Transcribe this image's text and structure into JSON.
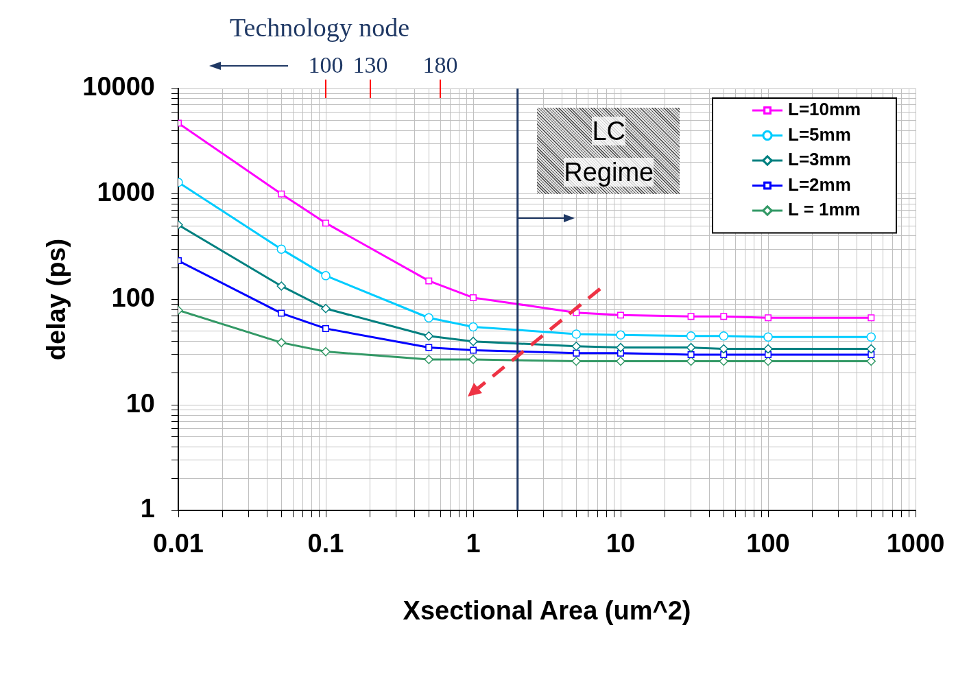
{
  "chart_data": {
    "type": "line",
    "title": "Technology node",
    "xlabel": "Xsectional Area (um^2)",
    "ylabel": "delay (ps)",
    "x": [
      0.01,
      0.05,
      0.1,
      0.5,
      1,
      5,
      10,
      30,
      50,
      100,
      500
    ],
    "series": [
      {
        "name": "L=10mm",
        "color": "#ff00ff",
        "marker": "square",
        "values": [
          4700,
          1000,
          530,
          150,
          104,
          75,
          71,
          69,
          69,
          67,
          67
        ]
      },
      {
        "name": "L=5mm",
        "color": "#00ccff",
        "marker": "circle",
        "values": [
          1290,
          300,
          168,
          67,
          55,
          47,
          46,
          45,
          45,
          44,
          44
        ]
      },
      {
        "name": "L=3mm",
        "color": "#008080",
        "marker": "diamond",
        "values": [
          510,
          134,
          82,
          45,
          40,
          36,
          35,
          35,
          34,
          34,
          34
        ]
      },
      {
        "name": "L=2mm",
        "color": "#0000ff",
        "marker": "square",
        "values": [
          233,
          74,
          53,
          35,
          33,
          31,
          31,
          30,
          30,
          30,
          30
        ]
      },
      {
        "name": "L = 1mm",
        "color": "#339966",
        "marker": "diamond",
        "values": [
          79,
          39,
          32,
          27,
          27,
          26,
          26,
          26,
          26,
          26,
          26
        ]
      }
    ],
    "log": "xy",
    "xlim": [
      0.01,
      1000
    ],
    "xticks": [
      0.01,
      0.1,
      1,
      10,
      100,
      1000
    ],
    "ylim": [
      1,
      10000
    ],
    "yticks": [
      1,
      10,
      100,
      1000,
      10000
    ],
    "ref_lines": [
      {
        "axis": "x",
        "value": 2,
        "color": "#1f3864"
      }
    ],
    "annotations": [
      "100",
      "130",
      "180",
      {
        "text": "LC Regime",
        "x": 2,
        "y": 600
      }
    ],
    "grid": true,
    "legend": "top right",
    "line_style": "solid"
  }
}
